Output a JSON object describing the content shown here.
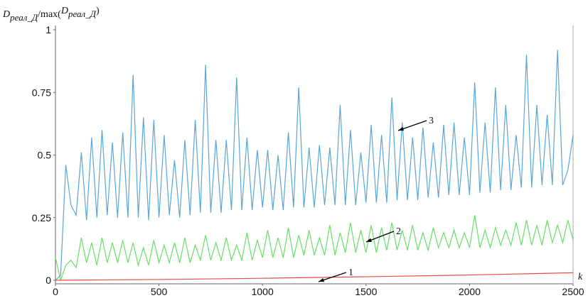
{
  "chart_data": {
    "type": "line",
    "ylabel": [
      "D",
      "реал_Д",
      "/max(",
      "D",
      "реал_Д",
      ")"
    ],
    "xlabel": "k",
    "x": [
      0,
      25,
      50,
      75,
      100,
      125,
      150,
      175,
      200,
      225,
      250,
      275,
      300,
      325,
      350,
      375,
      400,
      425,
      450,
      475,
      500,
      525,
      550,
      575,
      600,
      625,
      650,
      675,
      700,
      725,
      750,
      775,
      800,
      825,
      850,
      875,
      900,
      925,
      950,
      975,
      1000,
      1025,
      1050,
      1075,
      1100,
      1125,
      1150,
      1175,
      1200,
      1225,
      1250,
      1275,
      1300,
      1325,
      1350,
      1375,
      1400,
      1425,
      1450,
      1475,
      1500,
      1525,
      1550,
      1575,
      1600,
      1625,
      1650,
      1675,
      1700,
      1725,
      1750,
      1775,
      1800,
      1825,
      1850,
      1875,
      1900,
      1925,
      1950,
      1975,
      2000,
      2025,
      2050,
      2075,
      2100,
      2125,
      2150,
      2175,
      2200,
      2225,
      2250,
      2275,
      2300,
      2325,
      2350,
      2375,
      2400,
      2425,
      2450,
      2475,
      2500
    ],
    "series": [
      {
        "color": "#5aa6d6",
        "values": [
          0,
          0.02,
          0.46,
          0.3,
          0.26,
          0.51,
          0.24,
          0.57,
          0.25,
          0.6,
          0.26,
          0.55,
          0.25,
          0.59,
          0.25,
          0.82,
          0.25,
          0.65,
          0.24,
          0.64,
          0.25,
          0.58,
          0.26,
          0.48,
          0.25,
          0.56,
          0.26,
          0.64,
          0.27,
          0.86,
          0.27,
          0.56,
          0.27,
          0.56,
          0.28,
          0.81,
          0.28,
          0.57,
          0.28,
          0.52,
          0.29,
          0.52,
          0.28,
          0.5,
          0.28,
          0.59,
          0.29,
          0.77,
          0.29,
          0.53,
          0.29,
          0.54,
          0.3,
          0.53,
          0.3,
          0.7,
          0.3,
          0.6,
          0.3,
          0.51,
          0.31,
          0.62,
          0.31,
          0.58,
          0.31,
          0.73,
          0.32,
          0.63,
          0.32,
          0.57,
          0.32,
          0.61,
          0.33,
          0.55,
          0.33,
          0.62,
          0.34,
          0.63,
          0.34,
          0.57,
          0.34,
          0.79,
          0.35,
          0.63,
          0.35,
          0.77,
          0.36,
          0.7,
          0.36,
          0.58,
          0.37,
          0.9,
          0.37,
          0.7,
          0.38,
          0.66,
          0.38,
          0.92,
          0.38,
          0.44,
          0.58
        ]
      },
      {
        "color": "#66e066",
        "values": [
          0.09,
          0,
          0.06,
          0.08,
          0.05,
          0.17,
          0.07,
          0.15,
          0.06,
          0.17,
          0.07,
          0.15,
          0.07,
          0.16,
          0.07,
          0.15,
          0.06,
          0.13,
          0.06,
          0.16,
          0.07,
          0.14,
          0.07,
          0.15,
          0.07,
          0.17,
          0.07,
          0.14,
          0.08,
          0.18,
          0.08,
          0.15,
          0.08,
          0.17,
          0.08,
          0.14,
          0.08,
          0.19,
          0.08,
          0.16,
          0.09,
          0.2,
          0.09,
          0.17,
          0.09,
          0.21,
          0.09,
          0.18,
          0.1,
          0.2,
          0.1,
          0.17,
          0.1,
          0.22,
          0.1,
          0.19,
          0.11,
          0.23,
          0.11,
          0.2,
          0.11,
          0.22,
          0.11,
          0.21,
          0.12,
          0.23,
          0.12,
          0.2,
          0.12,
          0.22,
          0.12,
          0.19,
          0.12,
          0.21,
          0.13,
          0.19,
          0.13,
          0.2,
          0.13,
          0.19,
          0.13,
          0.26,
          0.13,
          0.2,
          0.13,
          0.21,
          0.14,
          0.2,
          0.14,
          0.23,
          0.14,
          0.24,
          0.14,
          0.22,
          0.14,
          0.24,
          0.15,
          0.22,
          0.15,
          0.24,
          0.16
        ]
      },
      {
        "color": "#e0504a",
        "x": [
          0,
          500,
          1000,
          1500,
          2000,
          2500
        ],
        "values": [
          0,
          0.003,
          0.008,
          0.014,
          0.021,
          0.03
        ]
      }
    ],
    "annotations": [
      "1",
      "2",
      "3"
    ],
    "xlim": [
      0,
      2500
    ],
    "xticks": [
      0,
      500,
      1000,
      1500,
      2000,
      2500
    ],
    "ylim": [
      0,
      1
    ],
    "yticks": [
      0,
      0.25,
      0.5,
      0.75,
      1
    ]
  }
}
